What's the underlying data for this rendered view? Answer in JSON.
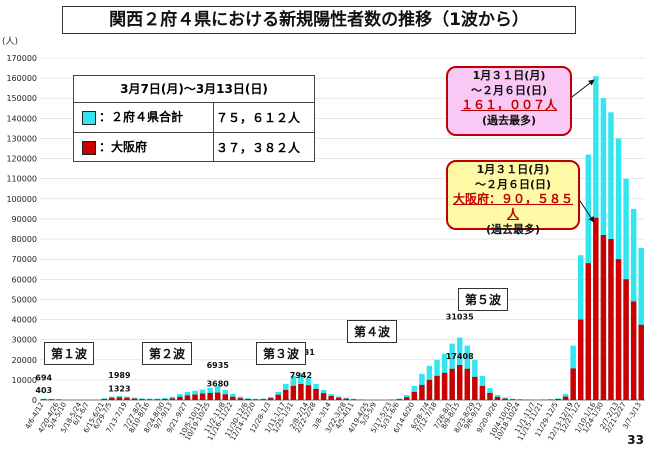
{
  "title": "関西２府４県における新規陽性者数の推移（1波から）",
  "unit": "(人)",
  "legend": {
    "period": "3月7日(月)～3月13日(日)",
    "rows": [
      {
        "label": "：２府４県合計",
        "value": "７５，６１２人",
        "color": "#33e5ee"
      },
      {
        "label": "：大阪府",
        "value": "３７，３８２人",
        "color": "#cc0000"
      }
    ]
  },
  "callout_total": {
    "line1": "1月３１日(月)",
    "line2": "～２月６日(日)",
    "value": "１６１，００７人",
    "note": "(過去最多)"
  },
  "callout_osaka": {
    "line1": "1月３１日(月)",
    "line2": "～２月６日(日)",
    "value": "大阪府：９０，５８５人",
    "note": "(過去最多)"
  },
  "waves": [
    "第１波",
    "第２波",
    "第３波",
    "第４波",
    "第５波"
  ],
  "page_number": "33",
  "chart_data": {
    "type": "bar",
    "ylim": [
      0,
      170000
    ],
    "y_ticks": [
      0,
      10000,
      20000,
      30000,
      40000,
      50000,
      60000,
      70000,
      80000,
      90000,
      100000,
      110000,
      120000,
      130000,
      140000,
      150000,
      160000,
      170000
    ],
    "x_tick_labels": [
      "4/6-4/12",
      "4/20-4/26",
      "5/4-5/10",
      "5/18-5/24",
      "6/1-6/7",
      "6/15-6/21",
      "6/29-7/5",
      "7/13-7/19",
      "7/27-8/2",
      "8/10-8/16",
      "8/24-8/30",
      "9/7-9/13",
      "9/21-9/27",
      "10/5-10/11",
      "10/19-10/25",
      "11/2-11/8",
      "11/16-11/22",
      "11/30-12/6",
      "12/14-12/20",
      "12/28-1/3",
      "1/11-1/17",
      "1/25-1/31",
      "2/8-2/14",
      "2/22-2/28",
      "3/8-3/14",
      "3/22-3/28",
      "4/5-4/11",
      "4/19-4/25",
      "5/3-5/9",
      "5/17-5/23",
      "5/31-6/6",
      "6/14-6/20",
      "6/28-7/4",
      "7/12-7/18",
      "7/26-8/1",
      "8/9-8/15",
      "8/23-8/29",
      "9/6-9/12",
      "9/20-9/26",
      "10/4-10/10",
      "10/18-10/24",
      "11/1-11/7",
      "11/15-11/21",
      "11/29-12/5",
      "12/13-12/19",
      "12/27-1/2",
      "1/10-1/16",
      "1/24-1/30",
      "2/7-2/13",
      "2/21-2/27",
      "3/7-3/13"
    ],
    "series": [
      {
        "name": "２府４県合計",
        "color": "#33e5ee",
        "values": [
          694,
          600,
          400,
          150,
          50,
          20,
          60,
          150,
          800,
          1700,
          1989,
          1700,
          1200,
          800,
          700,
          700,
          1000,
          1600,
          3000,
          4000,
          4600,
          5200,
          6000,
          6935,
          5000,
          3000,
          1700,
          900,
          600,
          700,
          1500,
          4000,
          8000,
          12000,
          13331,
          11000,
          8000,
          5000,
          3000,
          1800,
          1100,
          600,
          300,
          150,
          100,
          150,
          300,
          700,
          2500,
          7000,
          13000,
          17000,
          20000,
          23000,
          28000,
          31035,
          27000,
          20000,
          12000,
          6000,
          2500,
          1200,
          600,
          400,
          300,
          250,
          300,
          400,
          800,
          3000,
          27000,
          72000,
          122000,
          161007,
          150000,
          143000,
          130000,
          110000,
          95000,
          75612
        ]
      },
      {
        "name": "大阪府",
        "color": "#cc0000",
        "values": [
          403,
          350,
          250,
          100,
          30,
          10,
          40,
          90,
          500,
          1100,
          1323,
          1100,
          700,
          450,
          350,
          350,
          500,
          800,
          1600,
          2300,
          2700,
          3200,
          3500,
          3680,
          2800,
          1600,
          900,
          500,
          350,
          400,
          900,
          2600,
          5000,
          7000,
          7942,
          7300,
          5500,
          3400,
          2000,
          1100,
          700,
          350,
          200,
          90,
          60,
          90,
          180,
          400,
          1400,
          4000,
          7500,
          10000,
          12000,
          13500,
          15500,
          17408,
          15500,
          11500,
          7000,
          3500,
          1500,
          700,
          350,
          250,
          180,
          150,
          180,
          250,
          500,
          1700,
          15700,
          40000,
          68000,
          90585,
          82000,
          80000,
          70000,
          60000,
          49000,
          37382
        ]
      }
    ],
    "data_labels": [
      {
        "text": "694",
        "series": 0,
        "index": 0
      },
      {
        "text": "403",
        "series": 1,
        "index": 0
      },
      {
        "text": "1989",
        "series": 0,
        "index": 10
      },
      {
        "text": "1323",
        "series": 1,
        "index": 10
      },
      {
        "text": "6935",
        "series": 0,
        "index": 23
      },
      {
        "text": "3680",
        "series": 1,
        "index": 23
      },
      {
        "text": "13331",
        "series": 0,
        "index": 34
      },
      {
        "text": "7942",
        "series": 1,
        "index": 34
      },
      {
        "text": "31035",
        "series": 0,
        "index": 55
      },
      {
        "text": "17408",
        "series": 1,
        "index": 55
      }
    ]
  }
}
